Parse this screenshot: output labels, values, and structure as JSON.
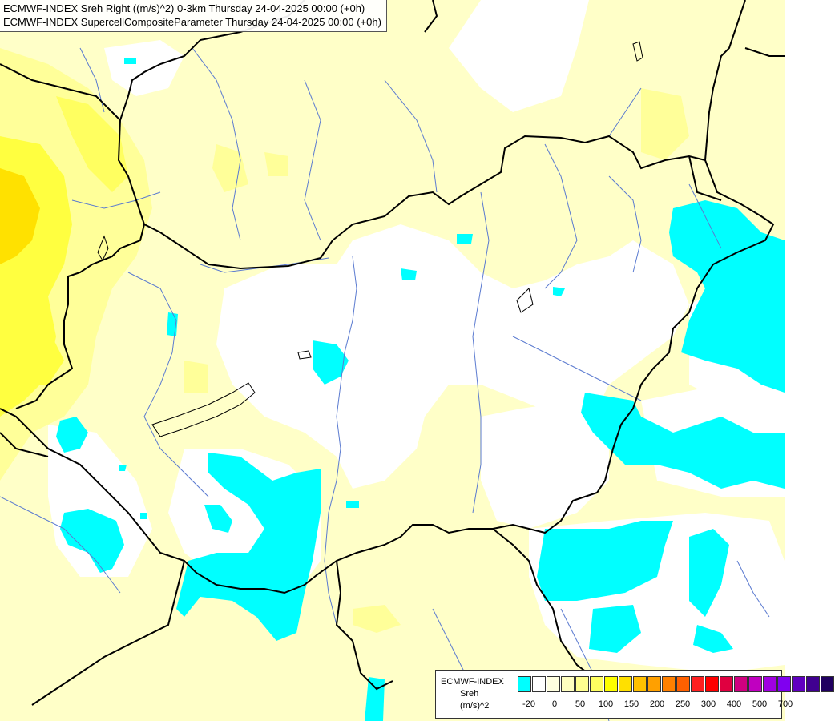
{
  "header": {
    "line1": "ECMWF-INDEX Sreh Right ((m/s)^2) 0-3km Thursday 24-04-2025 00:00 (+0h)",
    "line2": "ECMWF-INDEX SupercellCompositeParameter Thursday 24-04-2025 00:00 (+0h)"
  },
  "legend": {
    "title": "ECMWF-INDEX",
    "variable": "Sreh",
    "unit": "(m/s)^2",
    "colors": [
      "#00ffff",
      "#ffffff",
      "#ffffe0",
      "#ffffc0",
      "#ffff90",
      "#ffff60",
      "#ffff00",
      "#ffe000",
      "#ffc000",
      "#ffa000",
      "#ff8000",
      "#ff6000",
      "#ff2020",
      "#ff0000",
      "#e00040",
      "#d00080",
      "#c000c0",
      "#a000e0",
      "#8000f0",
      "#6000c0",
      "#400090",
      "#200060"
    ],
    "ticks": [
      "-20",
      "0",
      "50",
      "100",
      "150",
      "200",
      "250",
      "300",
      "400",
      "500",
      "700"
    ]
  },
  "map": {
    "colors": {
      "background": "#ffffc8",
      "zero": "#ffffff",
      "negative": "#00ffff",
      "light_yellow": "#ffff99",
      "yellow": "#ffff33",
      "gold": "#ffe100",
      "border": "#000000",
      "river": "#5a7ad0"
    }
  }
}
